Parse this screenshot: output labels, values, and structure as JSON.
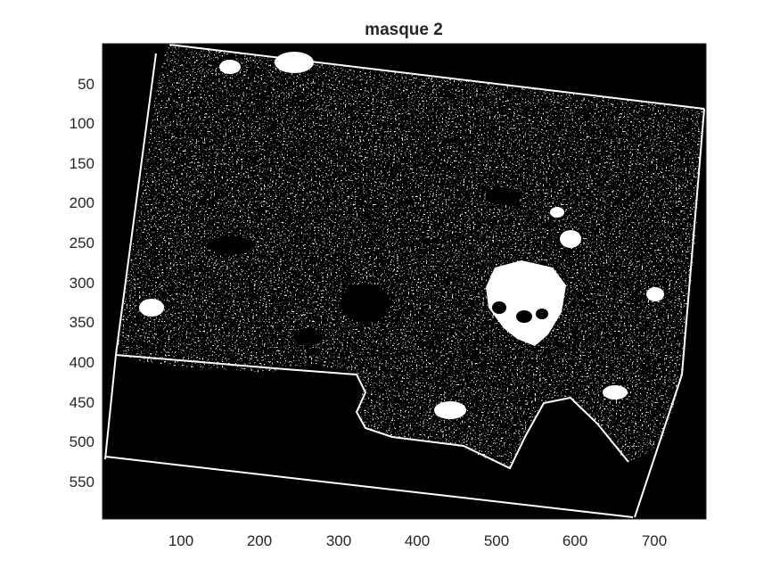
{
  "figure": {
    "title": "masque 2",
    "image_kind": "binary mask (white on black)",
    "x_ticks": [
      "100",
      "200",
      "300",
      "400",
      "500",
      "600",
      "700"
    ],
    "y_ticks": [
      "50",
      "100",
      "150",
      "200",
      "250",
      "300",
      "350",
      "400",
      "450",
      "500",
      "550"
    ],
    "x_range": [
      1,
      766
    ],
    "y_range": [
      1,
      598
    ],
    "colors": {
      "background": "#000000",
      "mask": "#ffffff",
      "text": "#262626"
    }
  }
}
